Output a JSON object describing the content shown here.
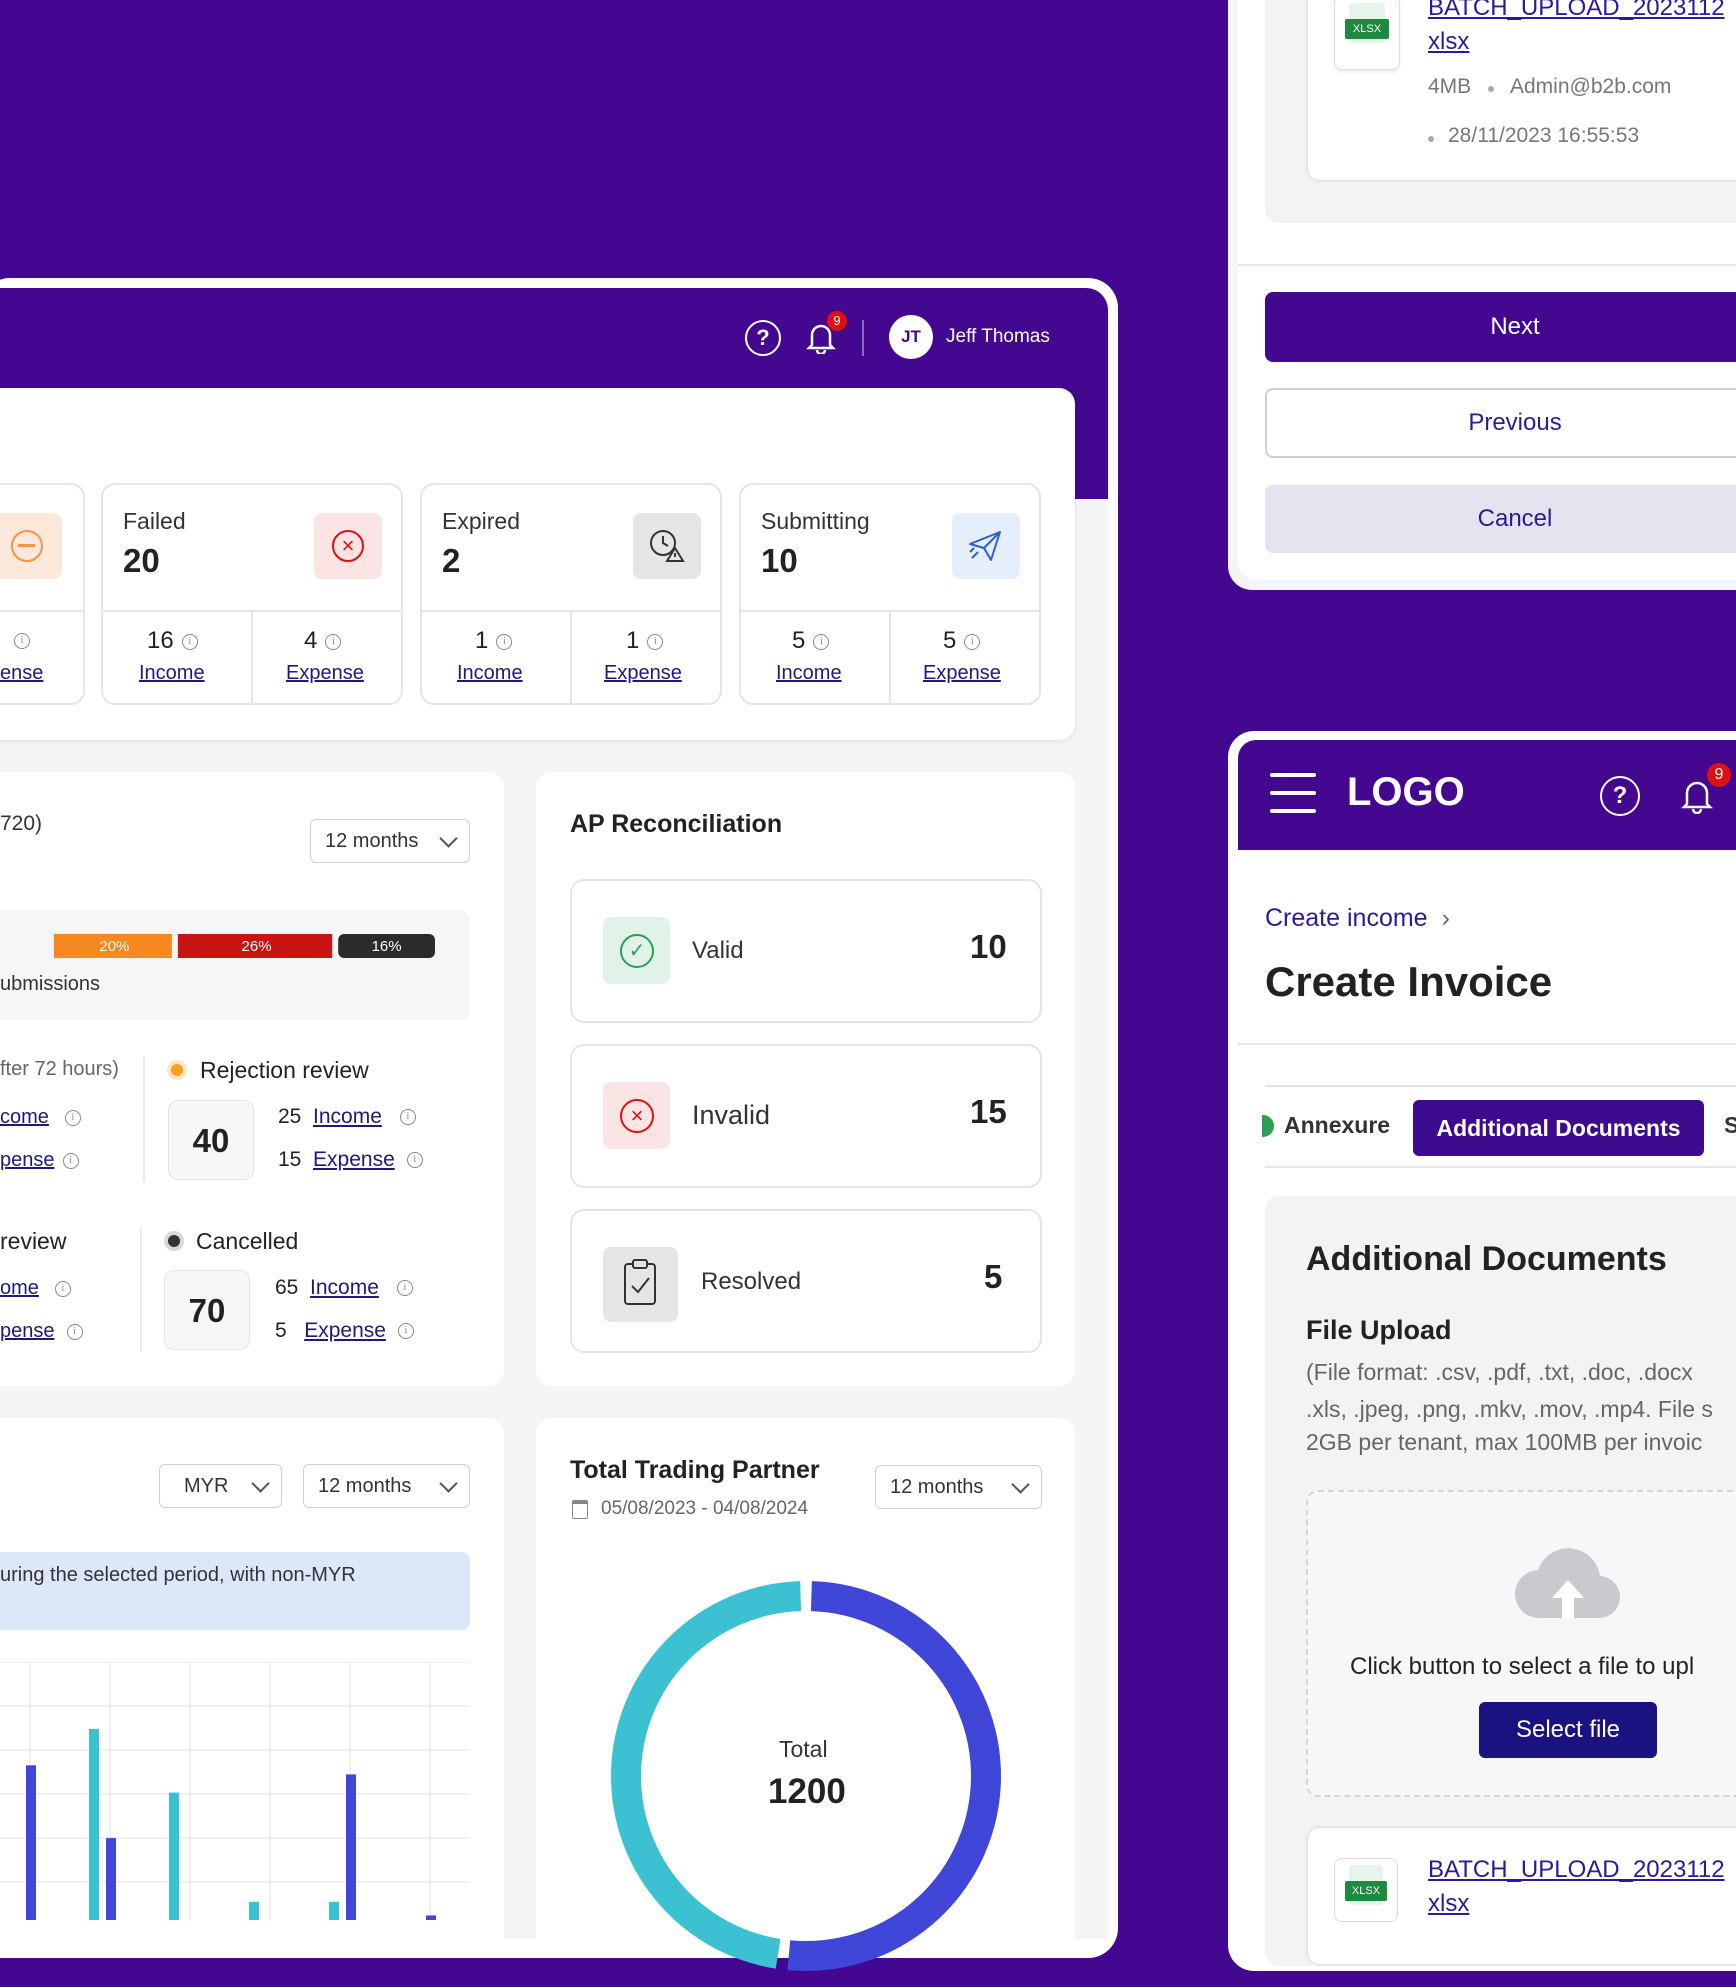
{
  "colors": {
    "purple": "#43088f",
    "dark_navy": "#1a1280",
    "teal": "#3cc1d3",
    "blue": "#3f46d8"
  },
  "header": {
    "help_icon": "help-icon",
    "bell_icon": "bell-icon",
    "notification_count": "9",
    "avatar_initials": "JT",
    "user_name": "Jeff Thomas"
  },
  "status_cards": {
    "partial": {
      "income_count": "",
      "expense_label": "ense"
    },
    "failed": {
      "title": "Failed",
      "value": "20",
      "income_count": "16",
      "income_label": "Income",
      "expense_count": "4",
      "expense_label": "Expense"
    },
    "expired": {
      "title": "Expired",
      "value": "2",
      "income_count": "1",
      "income_label": "Income",
      "expense_count": "1",
      "expense_label": "Expense"
    },
    "submitting": {
      "title": "Submitting",
      "value": "10",
      "income_count": "5",
      "income_label": "Income",
      "expense_count": "5",
      "expense_label": "Expense"
    }
  },
  "submissions_panel": {
    "title_fragment": "720)",
    "period": "12 months",
    "bar_segments": [
      {
        "label": "20%",
        "value": 20,
        "color": "#f7871f"
      },
      {
        "label": "26%",
        "value": 26,
        "color": "#c91414"
      },
      {
        "label": "16%",
        "value": 16,
        "color": "#2b2b2b"
      }
    ],
    "bar_caption": "ubmissions",
    "left_top_label": "fter 72 hours)",
    "left_top_income": "come",
    "left_top_expense": "pense",
    "left_bottom_label": "review",
    "left_bottom_income": "ome",
    "left_bottom_expense": "pense",
    "rejection": {
      "title": "Rejection review",
      "total": "40",
      "income_count": "25",
      "income_label": "Income",
      "expense_count": "15",
      "expense_label": "Expense"
    },
    "cancelled": {
      "title": "Cancelled",
      "total": "70",
      "income_count": "65",
      "income_label": "Income",
      "expense_count": "5",
      "expense_label": "Expense"
    }
  },
  "ap_reconciliation": {
    "title": "AP Reconciliation",
    "items": [
      {
        "label": "Valid",
        "value": "10"
      },
      {
        "label": "Invalid",
        "value": "15"
      },
      {
        "label": "Resolved",
        "value": "5"
      }
    ]
  },
  "currency_panel": {
    "currency": "MYR",
    "period": "12 months",
    "notice": "uring the selected period, with non-MYR"
  },
  "bar_chart_data": {
    "type": "bar",
    "series": [
      {
        "color": "#3f46d8",
        "values": [
          17,
          9,
          null,
          null,
          null,
          16,
          0.5
        ]
      },
      {
        "color": "#3cc1d3",
        "values": [
          null,
          21,
          14,
          2,
          2,
          null,
          null
        ]
      }
    ]
  },
  "trading_partner": {
    "title": "Total Trading Partner",
    "date_range": "05/08/2023 - 04/08/2024",
    "period": "12 months",
    "total_label": "Total",
    "total_value": "1200"
  },
  "chart_data": {
    "type": "pie",
    "values": [
      52,
      48
    ],
    "colors": [
      "#3f46d8",
      "#3cc1d3"
    ]
  },
  "upload_top": {
    "file_name_line1": "BATCH_UPLOAD_2023112",
    "file_name_line2": "xlsx",
    "file_size": "4MB",
    "uploader": "Admin@b2b.com",
    "date": "28/11/2023 16:55:53",
    "xlsx_badge": "XLSX",
    "next_label": "Next",
    "previous_label": "Previous",
    "cancel_label": "Cancel"
  },
  "mobile": {
    "logo": "LOGO",
    "notification_count": "9",
    "breadcrumb": "Create income",
    "page_title": "Create Invoice",
    "tabs": [
      "Annexure",
      "Additional Documents",
      "S"
    ],
    "section_title": "Additional Documents",
    "upload_title": "File Upload",
    "upload_hint_line1": "(File format:  .csv, .pdf, .txt, .doc, .docx",
    "upload_hint_line2": ".xls, .jpeg, .png, .mkv, .mov, .mp4. File s",
    "upload_hint_line3": "2GB per tenant, max 100MB per invoic",
    "dropzone_text": "Click button to select a file to upl",
    "select_file_label": "Select file",
    "file_name_line1": "BATCH_UPLOAD_2023112",
    "file_name_line2": "xlsx",
    "xlsx_badge": "XLSX"
  }
}
